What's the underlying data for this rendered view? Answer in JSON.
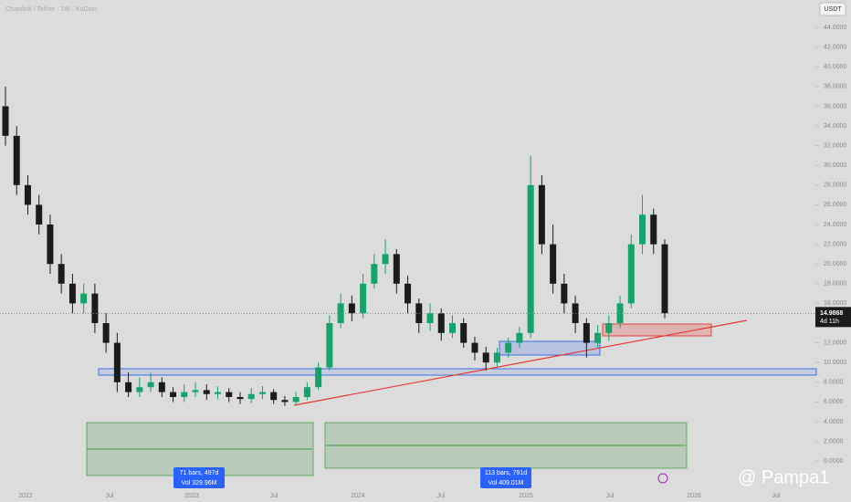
{
  "chart_data": {
    "type": "candlestick",
    "title": "Chainlink / Tether · 1W · KuCoin",
    "currency": "USDT",
    "up_color": "#16a36b",
    "down_color": "#1b1b1b",
    "open": [
      36,
      33,
      28,
      26,
      24,
      20,
      18,
      16,
      17,
      14,
      12,
      8,
      7,
      7.5,
      8,
      7,
      6.5,
      7,
      7.2,
      6.8,
      7,
      6.5,
      6.3,
      6.8,
      7,
      6.2,
      6,
      6.5,
      7.5,
      9.5,
      14,
      16,
      15,
      18,
      20,
      21,
      18,
      16,
      14,
      15,
      13,
      14,
      12,
      11,
      10,
      11,
      12,
      13,
      28,
      22,
      18,
      16,
      14,
      12,
      13,
      14,
      16,
      22,
      25,
      22
    ],
    "high": [
      38,
      34,
      29,
      27,
      25,
      21,
      19,
      18,
      18,
      15,
      13,
      9,
      8.5,
      9,
      8.5,
      7.5,
      7.8,
      8,
      7.8,
      7.6,
      7.4,
      7,
      7.4,
      7.6,
      7.3,
      6.6,
      7,
      8,
      10,
      14.8,
      17,
      16.8,
      19,
      21,
      22.5,
      21.5,
      18.8,
      16.5,
      16,
      15.5,
      14.8,
      14.5,
      12.6,
      11.6,
      11.5,
      12.5,
      13.6,
      31,
      29,
      24,
      19,
      16.8,
      14.5,
      13.8,
      14.8,
      16.8,
      23,
      27,
      25.6,
      22.5
    ],
    "low": [
      32,
      27,
      25,
      23,
      19,
      17,
      15,
      15,
      13,
      11,
      7,
      6.5,
      6.5,
      7,
      6.5,
      6,
      6,
      6.5,
      6.2,
      6.3,
      6,
      5.8,
      5.9,
      6.3,
      5.8,
      5.6,
      5.7,
      6.2,
      7.2,
      9.2,
      13.5,
      14.2,
      14.5,
      17.5,
      19,
      17,
      15,
      13,
      13.2,
      12.2,
      12.5,
      11.5,
      10.2,
      9.2,
      9.6,
      10.5,
      11.5,
      12.5,
      21,
      17,
      15,
      13,
      10.5,
      11.5,
      12.2,
      13.5,
      15.5,
      21,
      21,
      14.5
    ],
    "close": [
      33,
      28,
      26,
      24,
      20,
      18,
      16,
      17,
      14,
      12,
      8,
      7,
      7.5,
      8,
      7,
      6.5,
      7,
      7.2,
      6.8,
      7,
      6.5,
      6.3,
      6.8,
      7,
      6.2,
      6,
      6.5,
      7.5,
      9.5,
      14,
      16,
      15,
      18,
      20,
      21,
      18,
      16,
      14,
      15,
      13,
      14,
      12,
      11,
      10,
      11,
      12,
      13,
      28,
      22,
      18,
      16,
      14,
      12,
      13,
      14,
      16,
      22,
      25,
      22,
      15
    ],
    "last_price": {
      "value": 14.9868,
      "label": "14.9868"
    },
    "countdown": "4d 11h",
    "x_labels": [
      "2022",
      "Jul",
      "2023",
      "Jul",
      "2024",
      "Jul",
      "2025",
      "Jul",
      "2026",
      "Jul"
    ],
    "ylim": [
      -4.15,
      46.78
    ],
    "yticks": [
      {
        "value": 44,
        "label": "44.0000"
      },
      {
        "value": 42,
        "label": "42.0000"
      },
      {
        "value": 40,
        "label": "40.0000"
      },
      {
        "value": 38,
        "label": "38.0000"
      },
      {
        "value": 36,
        "label": "36.0000"
      },
      {
        "value": 34,
        "label": "34.0000"
      },
      {
        "value": 32,
        "label": "32.0000"
      },
      {
        "value": 30,
        "label": "30.0000"
      },
      {
        "value": 28,
        "label": "28.0000"
      },
      {
        "value": 26,
        "label": "26.0000"
      },
      {
        "value": 24,
        "label": "24.0000"
      },
      {
        "value": 22,
        "label": "22.0000"
      },
      {
        "value": 20,
        "label": "20.0000"
      },
      {
        "value": 18,
        "label": "18.0000"
      },
      {
        "value": 16,
        "label": "16.0000"
      },
      {
        "value": 12,
        "label": "12.0000"
      },
      {
        "value": 10,
        "label": "10.0000"
      },
      {
        "value": 8,
        "label": "8.0000"
      },
      {
        "value": 6,
        "label": "6.0000"
      },
      {
        "value": 4,
        "label": "4.0000"
      },
      {
        "value": 2,
        "label": "2.0000"
      },
      {
        "value": 0,
        "label": "0.0000"
      }
    ],
    "measures": [
      {
        "bars": "71 bars, 497d",
        "volume": "Vol 329.96M"
      },
      {
        "bars": "113 bars, 791d",
        "volume": "Vol 409.01M"
      }
    ],
    "watermark": "@ Pampa1"
  }
}
